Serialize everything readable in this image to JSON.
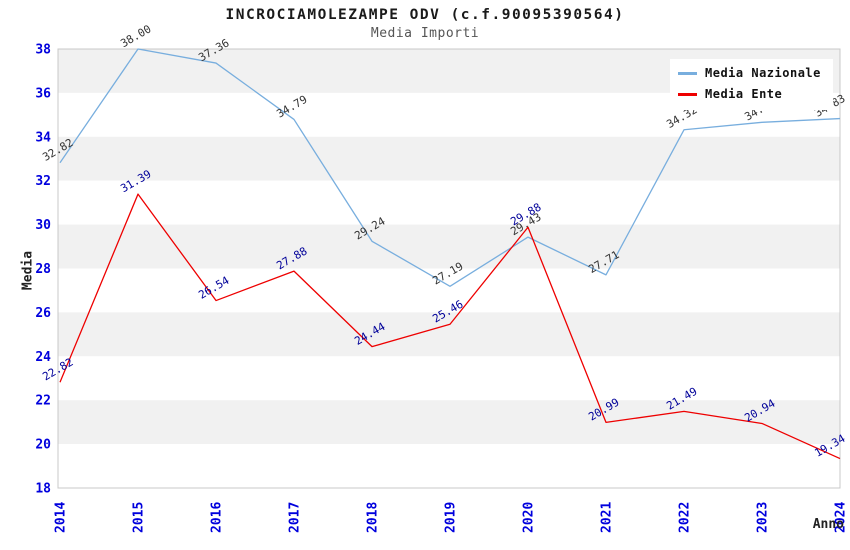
{
  "chart_data": {
    "type": "line",
    "title": "INCROCIAMOLEZAMPE ODV (c.f.90095390564)",
    "subtitle": "Media Importi",
    "xlabel": "Anno",
    "ylabel": "Media",
    "ylim": [
      18,
      38
    ],
    "ytick_step": 2,
    "grid": "alternating horizontal bands every 2 units",
    "band_fill": "#F1F1F1",
    "alt_band_fill": "#FFFFFF",
    "plot_border_color": "#C8C8C8",
    "axis_tick_color": "#0000DD",
    "legend_position": "top-right",
    "categories": [
      "2014",
      "2015",
      "2016",
      "2017",
      "2018",
      "2019",
      "2020",
      "2021",
      "2022",
      "2023",
      "2024"
    ],
    "series": [
      {
        "name": "Media Nazionale",
        "color": "#78AEDE",
        "label_color": "#333333",
        "values": [
          32.82,
          38.0,
          37.36,
          34.79,
          29.24,
          27.19,
          29.43,
          27.71,
          34.32,
          34.66,
          34.83
        ]
      },
      {
        "name": "Media Ente",
        "color": "#EE0000",
        "label_color": "#000099",
        "values": [
          22.82,
          31.39,
          26.54,
          27.88,
          24.44,
          25.46,
          29.88,
          20.99,
          21.49,
          20.94,
          19.34
        ]
      }
    ]
  }
}
